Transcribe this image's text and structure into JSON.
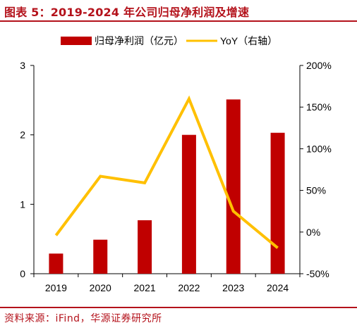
{
  "header": {
    "title": "图表 5：2019-2024 年公司归母净利润及增速"
  },
  "footer": {
    "source": "资料来源：iFind，华源证券研究所"
  },
  "colors": {
    "bar": "#c00000",
    "line": "#ffc000",
    "accent": "#b4121b",
    "axis": "#000000"
  },
  "chart_data": {
    "type": "bar",
    "categories": [
      "2019",
      "2020",
      "2021",
      "2022",
      "2023",
      "2024"
    ],
    "series": [
      {
        "name": "归母净利润（亿元）",
        "type": "bar",
        "axis": "left",
        "values": [
          0.29,
          0.49,
          0.77,
          2.0,
          2.51,
          2.03
        ]
      },
      {
        "name": "YoY（右轴）",
        "type": "line",
        "axis": "right",
        "values": [
          -0.04,
          0.67,
          0.59,
          1.6,
          0.25,
          -0.19
        ]
      }
    ],
    "ylim_left": [
      0,
      3
    ],
    "yticks_left": [
      "0",
      "1",
      "2",
      "3"
    ],
    "ylim_right": [
      -0.5,
      2.0
    ],
    "yticks_right": [
      "-50%",
      "0%",
      "50%",
      "100%",
      "150%",
      "200%"
    ],
    "legend_position": "top-center",
    "grid": false
  }
}
